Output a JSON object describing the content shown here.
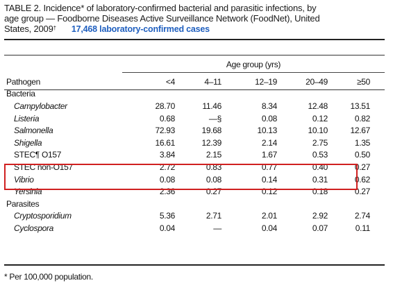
{
  "title": {
    "line1": "TABLE 2. Incidence* of laboratory-confirmed bacterial and parasitic infections, by",
    "line2": "age group — Foodborne Diseases Active Surveillance Network (FoodNet), United",
    "line3": "States, 2009",
    "line3_mark": "†",
    "cases_annotation": "17,468 laboratory-confirmed cases"
  },
  "header": {
    "group_label": "Age group (yrs)",
    "pathogen_label": "Pathogen",
    "columns": [
      "<4",
      "4–11",
      "12–19",
      "20–49",
      "≥50"
    ]
  },
  "sections": [
    {
      "name": "Bacteria",
      "rows": [
        {
          "pathogen": "Campylobacter",
          "italic": true,
          "values": [
            "28.70",
            "11.46",
            "8.34",
            "12.48",
            "13.51"
          ]
        },
        {
          "pathogen": "Listeria",
          "italic": true,
          "values": [
            "0.68",
            "—§",
            "0.08",
            "0.12",
            "0.82"
          ]
        },
        {
          "pathogen": "Salmonella",
          "italic": true,
          "values": [
            "72.93",
            "19.68",
            "10.13",
            "10.10",
            "12.67"
          ]
        },
        {
          "pathogen": "Shigella",
          "italic": true,
          "values": [
            "16.61",
            "12.39",
            "2.14",
            "2.75",
            "1.35"
          ]
        },
        {
          "pathogen": "STEC¶ O157",
          "italic": false,
          "values": [
            "3.84",
            "2.15",
            "1.67",
            "0.53",
            "0.50"
          ]
        },
        {
          "pathogen": "STEC non-O157",
          "italic": false,
          "values": [
            "2.72",
            "0.83",
            "0.77",
            "0.40",
            "0.27"
          ]
        },
        {
          "pathogen": "Vibrio",
          "italic": true,
          "values": [
            "0.08",
            "0.08",
            "0.14",
            "0.31",
            "0.62"
          ]
        },
        {
          "pathogen": "Yersinia",
          "italic": true,
          "values": [
            "2.36",
            "0.27",
            "0.12",
            "0.18",
            "0.27"
          ]
        }
      ]
    },
    {
      "name": "Parasites",
      "rows": [
        {
          "pathogen": "Cryptosporidium",
          "italic": true,
          "values": [
            "5.36",
            "2.71",
            "2.01",
            "2.92",
            "2.74"
          ]
        },
        {
          "pathogen": "Cyclospora",
          "italic": true,
          "values": [
            "0.04",
            "—",
            "0.04",
            "0.07",
            "0.11"
          ]
        }
      ]
    }
  ],
  "highlight_color": "#d02020",
  "cases_color": "#1f5fbf",
  "footnote": "* Per 100,000 population."
}
